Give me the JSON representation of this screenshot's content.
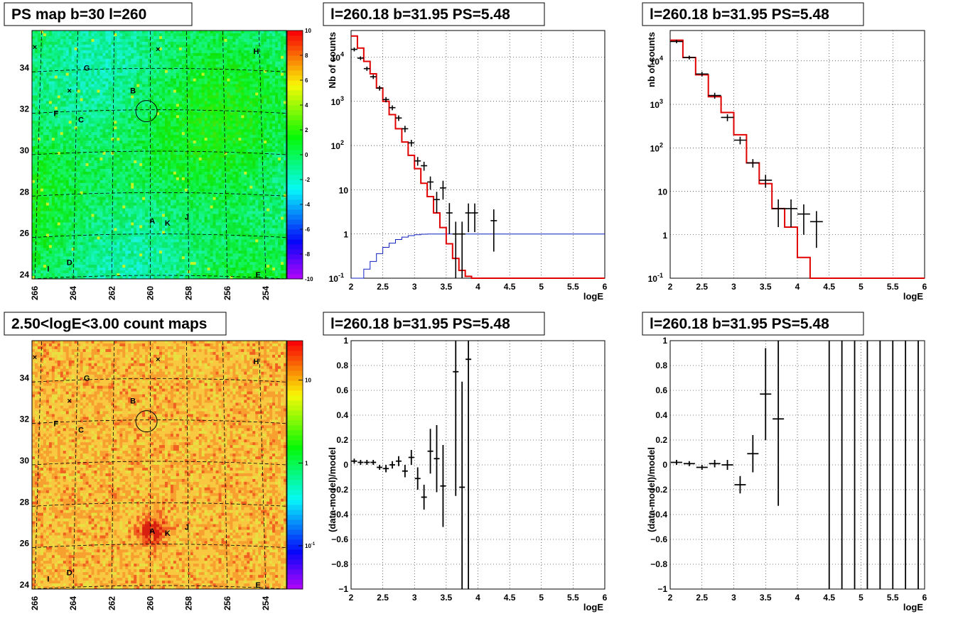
{
  "chart_data": [
    {
      "type": "heatmap",
      "title": "PS map b=30 l=260",
      "x_ticks": [
        "266",
        "264",
        "262",
        "260",
        "258",
        "256",
        "254"
      ],
      "y_ticks": [
        "24",
        "26",
        "28",
        "30",
        "32",
        "34"
      ],
      "colorbar_ticks": [
        "10",
        "8",
        "6",
        "4",
        "2",
        "0",
        "-2",
        "-4",
        "-6",
        "-8",
        "-10"
      ],
      "colorbar_range": [
        -10,
        10
      ],
      "sources": [
        {
          "name": "A",
          "l": 259.9,
          "b": 26.6
        },
        {
          "name": "B",
          "l": 260.9,
          "b": 32.9
        },
        {
          "name": "C",
          "l": 263.6,
          "b": 31.5
        },
        {
          "name": "D",
          "l": 264.2,
          "b": 24.6
        },
        {
          "name": "E",
          "l": 254.4,
          "b": 24.0
        },
        {
          "name": "F",
          "l": 264.9,
          "b": 31.8
        },
        {
          "name": "G",
          "l": 263.3,
          "b": 34.0
        },
        {
          "name": "H",
          "l": 254.5,
          "b": 34.8
        },
        {
          "name": "I",
          "l": 265.3,
          "b": 24.3
        },
        {
          "name": "J",
          "l": 258.1,
          "b": 26.8
        },
        {
          "name": "K",
          "l": 259.1,
          "b": 26.5
        }
      ],
      "cross_markers": [
        {
          "l": 266.0,
          "b": 35.0
        },
        {
          "l": 259.6,
          "b": 34.9
        },
        {
          "l": 264.2,
          "b": 32.9
        }
      ],
      "circle": {
        "l": 260.2,
        "b": 31.9
      }
    },
    {
      "type": "line",
      "title": "l=260.18 b=31.95 PS=5.48",
      "xlabel": "logE",
      "ylabel": "Nb of counts",
      "xlim": [
        2,
        6
      ],
      "ylim": [
        0.1,
        40000
      ],
      "yscale": "log",
      "x_ticks": [
        "2",
        "2.5",
        "3",
        "3.5",
        "4",
        "4.5",
        "5",
        "5.5",
        "6"
      ],
      "y_ticks": [
        {
          "v": 0.1,
          "t": "10"
        },
        {
          "v": 1,
          "t": "1"
        },
        {
          "v": 10,
          "t": "10"
        },
        {
          "v": 100,
          "t": "10"
        },
        {
          "v": 1000,
          "t": "10"
        },
        {
          "v": 10000,
          "t": "10"
        }
      ],
      "model_red": [
        30000,
        16000,
        8000,
        4200,
        2000,
        1000,
        500,
        240,
        120,
        60,
        30,
        14,
        7,
        3,
        1.4,
        0.6,
        0.28,
        0.15,
        0.11,
        0.1
      ],
      "model_blue": [
        0.07,
        0.1,
        0.16,
        0.24,
        0.36,
        0.5,
        0.62,
        0.75,
        0.85,
        0.92,
        0.96,
        0.99,
        1,
        1,
        1,
        1,
        1,
        1,
        1,
        1
      ],
      "data_points": [
        {
          "x": 2.05,
          "y": 15000,
          "e": 1500
        },
        {
          "x": 2.15,
          "y": 9500,
          "e": 900
        },
        {
          "x": 2.25,
          "y": 5500,
          "e": 600
        },
        {
          "x": 2.35,
          "y": 3600,
          "e": 400
        },
        {
          "x": 2.45,
          "y": 2000,
          "e": 250
        },
        {
          "x": 2.55,
          "y": 1100,
          "e": 150
        },
        {
          "x": 2.65,
          "y": 720,
          "e": 90
        },
        {
          "x": 2.75,
          "y": 420,
          "e": 60
        },
        {
          "x": 2.85,
          "y": 240,
          "e": 40
        },
        {
          "x": 2.95,
          "y": 115,
          "e": 20
        },
        {
          "x": 3.05,
          "y": 45,
          "e": 10
        },
        {
          "x": 3.15,
          "y": 35,
          "e": 8
        },
        {
          "x": 3.25,
          "y": 15,
          "e": 5
        },
        {
          "x": 3.35,
          "y": 6,
          "e": 3
        },
        {
          "x": 3.45,
          "y": 11,
          "e": 5
        },
        {
          "x": 3.55,
          "y": 3,
          "e": 2
        },
        {
          "x": 3.65,
          "y": 1,
          "e": 0.9
        },
        {
          "x": 3.75,
          "y": 1,
          "e": 0.9
        },
        {
          "x": 3.85,
          "y": 3,
          "e": 1.9
        },
        {
          "x": 3.95,
          "y": 3,
          "e": 1.9
        },
        {
          "x": 4.25,
          "y": 2,
          "e": 1.6
        }
      ]
    },
    {
      "type": "line",
      "title": "l=260.18 b=31.95 PS=5.48",
      "xlabel": "logE",
      "ylabel": "nb of counts",
      "xlim": [
        2,
        6
      ],
      "ylim": [
        0.1,
        50000
      ],
      "yscale": "log",
      "x_ticks": [
        "2",
        "2.5",
        "3",
        "3.5",
        "4",
        "4.5",
        "5",
        "5.5",
        "6"
      ],
      "y_ticks": [
        {
          "v": 0.1,
          "t": "10"
        },
        {
          "v": 1,
          "t": "1"
        },
        {
          "v": 10,
          "t": "10"
        },
        {
          "v": 100,
          "t": "10"
        },
        {
          "v": 1000,
          "t": "10"
        },
        {
          "v": 10000,
          "t": "10"
        }
      ],
      "model_red": [
        30000,
        12000,
        4800,
        1500,
        650,
        200,
        45,
        15,
        4,
        1.5,
        0.3,
        0.1
      ],
      "data_points": [
        {
          "x": 2.1,
          "y": 28000,
          "e": 2500
        },
        {
          "x": 2.3,
          "y": 12000,
          "e": 1200
        },
        {
          "x": 2.5,
          "y": 5000,
          "e": 600
        },
        {
          "x": 2.7,
          "y": 1600,
          "e": 250
        },
        {
          "x": 2.9,
          "y": 500,
          "e": 90
        },
        {
          "x": 3.1,
          "y": 150,
          "e": 30
        },
        {
          "x": 3.3,
          "y": 45,
          "e": 10
        },
        {
          "x": 3.5,
          "y": 18,
          "e": 6
        },
        {
          "x": 3.7,
          "y": 4,
          "e": 2.5
        },
        {
          "x": 3.9,
          "y": 4,
          "e": 2.5
        },
        {
          "x": 4.1,
          "y": 3,
          "e": 2
        },
        {
          "x": 4.3,
          "y": 2,
          "e": 1.5
        }
      ]
    },
    {
      "type": "heatmap",
      "title": "2.50<logE<3.00 count maps",
      "x_ticks": [
        "266",
        "264",
        "262",
        "260",
        "258",
        "256",
        "254"
      ],
      "y_ticks": [
        "24",
        "26",
        "28",
        "30",
        "32",
        "34"
      ],
      "colorbar_ticks": [
        "10",
        "1",
        "10"
      ],
      "colorbar_range": [
        0.03,
        30
      ],
      "colorbar_scale": "log"
    },
    {
      "type": "scatter",
      "title": "l=260.18 b=31.95 PS=5.48",
      "xlabel": "logE",
      "ylabel": "(data-model)/model",
      "xlim": [
        2,
        6
      ],
      "ylim": [
        -1,
        1
      ],
      "x_ticks": [
        "2",
        "2.5",
        "3",
        "3.5",
        "4",
        "4.5",
        "5",
        "5.5",
        "6"
      ],
      "y_ticks": [
        "−1",
        "−0.8",
        "−0.6",
        "−0.4",
        "−0.2",
        "0",
        "0.2",
        "0.4",
        "0.6",
        "0.8",
        "1"
      ],
      "data_points": [
        {
          "x": 2.05,
          "y": 0.03,
          "e": 0.02
        },
        {
          "x": 2.15,
          "y": 0.02,
          "e": 0.02
        },
        {
          "x": 2.25,
          "y": 0.02,
          "e": 0.02
        },
        {
          "x": 2.35,
          "y": 0.02,
          "e": 0.02
        },
        {
          "x": 2.45,
          "y": -0.02,
          "e": 0.02
        },
        {
          "x": 2.55,
          "y": -0.03,
          "e": 0.03
        },
        {
          "x": 2.65,
          "y": 0.0,
          "e": 0.03
        },
        {
          "x": 2.75,
          "y": 0.03,
          "e": 0.04
        },
        {
          "x": 2.85,
          "y": -0.05,
          "e": 0.05
        },
        {
          "x": 2.95,
          "y": 0.06,
          "e": 0.06
        },
        {
          "x": 3.05,
          "y": -0.11,
          "e": 0.09
        },
        {
          "x": 3.15,
          "y": -0.26,
          "e": 0.1
        },
        {
          "x": 3.25,
          "y": 0.11,
          "e": 0.18
        },
        {
          "x": 3.35,
          "y": 0.05,
          "e": 0.27
        },
        {
          "x": 3.45,
          "y": -0.17,
          "e": 0.33
        },
        {
          "x": 3.65,
          "y": 0.75,
          "e": 1.0
        },
        {
          "x": 3.75,
          "y": -0.18,
          "e": 0.85
        },
        {
          "x": 3.85,
          "y": 0.85,
          "e": 1.85
        }
      ]
    },
    {
      "type": "scatter",
      "title": "l=260.18 b=31.95 PS=5.48",
      "xlabel": "logE",
      "ylabel": "(data-model)/model",
      "xlim": [
        2,
        6
      ],
      "ylim": [
        -1,
        1
      ],
      "x_ticks": [
        "2",
        "2.5",
        "3",
        "3.5",
        "4",
        "4.5",
        "5",
        "5.5",
        "6"
      ],
      "y_ticks": [
        "−1",
        "−0.8",
        "−0.6",
        "−0.4",
        "−0.2",
        "0",
        "0.2",
        "0.4",
        "0.6",
        "0.8",
        "1"
      ],
      "data_points": [
        {
          "x": 2.1,
          "y": 0.02,
          "e": 0.02
        },
        {
          "x": 2.3,
          "y": 0.01,
          "e": 0.02
        },
        {
          "x": 2.5,
          "y": -0.02,
          "e": 0.02
        },
        {
          "x": 2.7,
          "y": 0.01,
          "e": 0.03
        },
        {
          "x": 2.9,
          "y": 0.0,
          "e": 0.04
        },
        {
          "x": 3.1,
          "y": -0.16,
          "e": 0.07
        },
        {
          "x": 3.3,
          "y": 0.09,
          "e": 0.15
        },
        {
          "x": 3.5,
          "y": 0.57,
          "e": 0.37
        },
        {
          "x": 3.7,
          "y": 0.37,
          "e": 0.7
        },
        {
          "x": 4.5,
          "y": 0,
          "e": 10
        },
        {
          "x": 4.7,
          "y": 0,
          "e": 10
        },
        {
          "x": 4.9,
          "y": 0,
          "e": 10
        },
        {
          "x": 5.1,
          "y": 0,
          "e": 10
        },
        {
          "x": 5.3,
          "y": 0,
          "e": 10
        },
        {
          "x": 5.5,
          "y": 0,
          "e": 10
        },
        {
          "x": 5.7,
          "y": 0,
          "e": 10
        },
        {
          "x": 5.9,
          "y": 0,
          "e": 10
        }
      ]
    }
  ]
}
